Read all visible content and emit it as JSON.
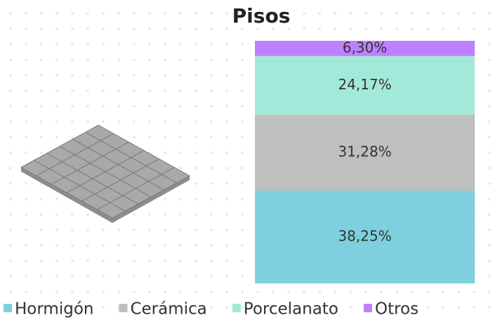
{
  "chart_data": {
    "type": "stacked_bar",
    "title": "Pisos",
    "series": [
      {
        "name": "Hormigón",
        "color": "#7fd0de",
        "values": [
          38.25
        ],
        "value_labels": [
          "38,25%"
        ]
      },
      {
        "name": "Cerámica",
        "color": "#bfbfbf",
        "values": [
          31.28
        ],
        "value_labels": [
          "31,28%"
        ]
      },
      {
        "name": "Porcelanato",
        "color": "#a3e9d9",
        "values": [
          24.17
        ],
        "value_labels": [
          "24,17%"
        ]
      },
      {
        "name": "Otros",
        "color": "#bf80ff",
        "values": [
          6.3
        ],
        "value_labels": [
          "6,30%"
        ]
      }
    ]
  }
}
